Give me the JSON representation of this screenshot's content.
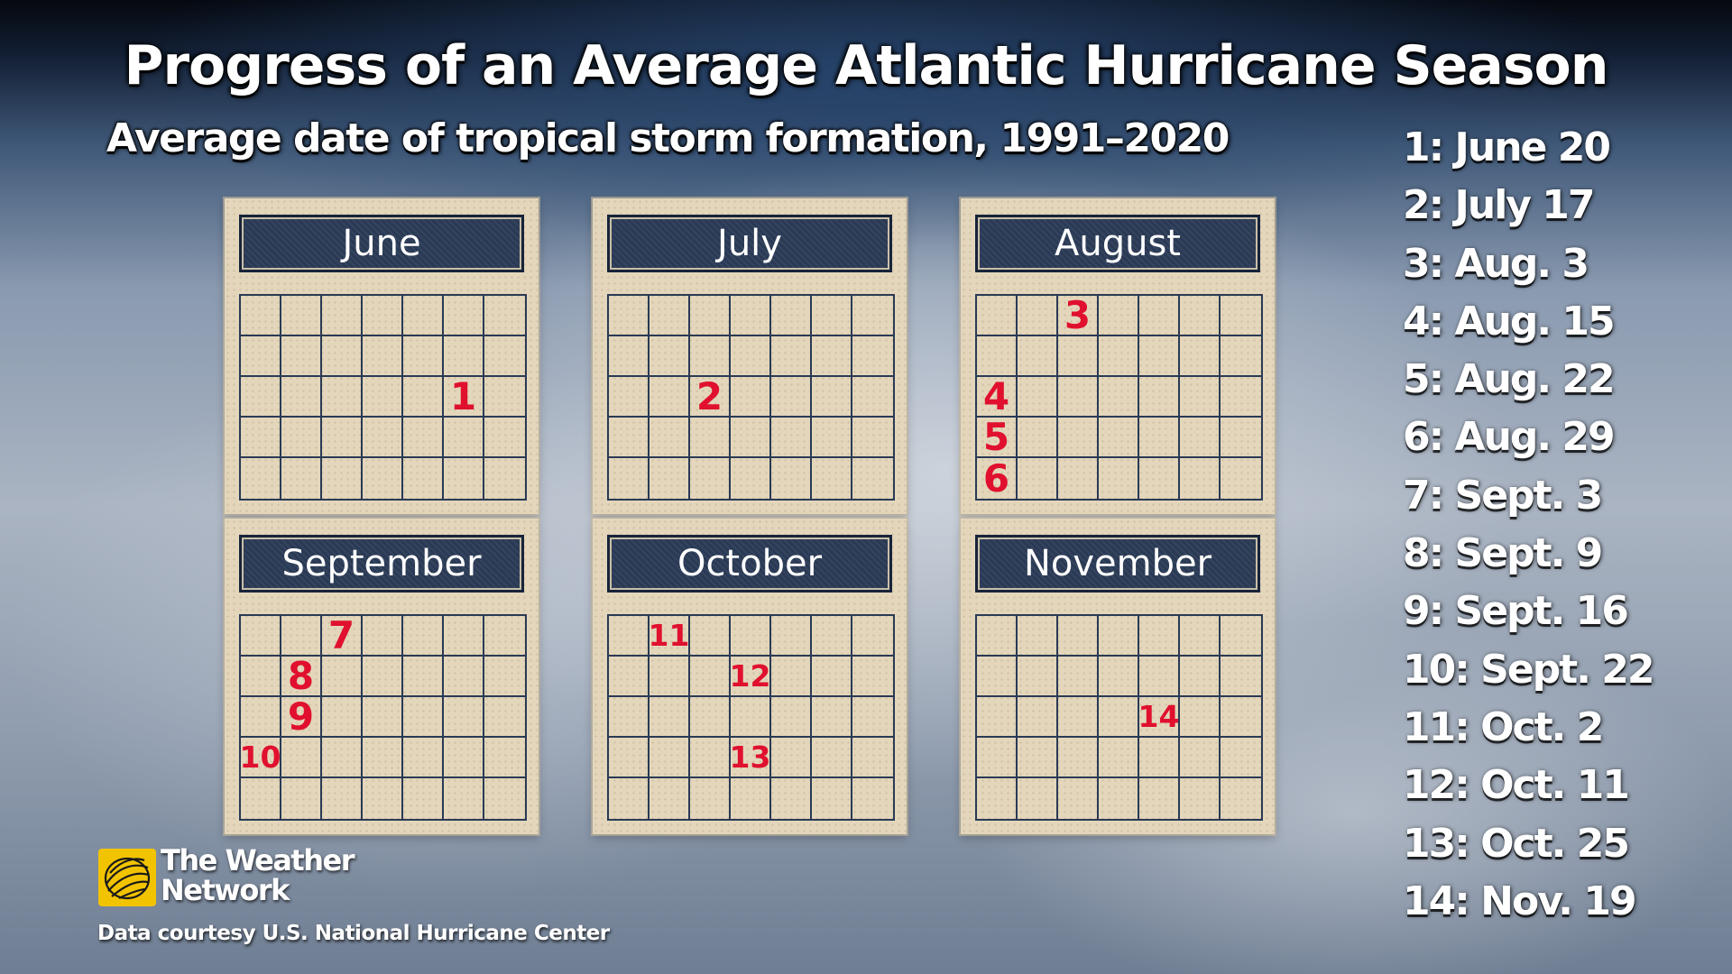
{
  "title": "Progress of an Average Atlantic Hurricane Season",
  "subtitle": "Average date of tropical storm formation, 1991–2020",
  "calendars": [
    {
      "month": "June",
      "marks": [
        {
          "row": 2,
          "col": 5,
          "label": "1"
        }
      ]
    },
    {
      "month": "July",
      "marks": [
        {
          "row": 2,
          "col": 2,
          "label": "2"
        }
      ]
    },
    {
      "month": "August",
      "marks": [
        {
          "row": 0,
          "col": 2,
          "label": "3"
        },
        {
          "row": 2,
          "col": 0,
          "label": "4"
        },
        {
          "row": 3,
          "col": 0,
          "label": "5"
        },
        {
          "row": 4,
          "col": 0,
          "label": "6"
        }
      ]
    },
    {
      "month": "September",
      "marks": [
        {
          "row": 0,
          "col": 2,
          "label": "7"
        },
        {
          "row": 1,
          "col": 1,
          "label": "8"
        },
        {
          "row": 2,
          "col": 1,
          "label": "9"
        },
        {
          "row": 3,
          "col": 0,
          "label": "10"
        }
      ]
    },
    {
      "month": "October",
      "marks": [
        {
          "row": 0,
          "col": 1,
          "label": "11"
        },
        {
          "row": 1,
          "col": 3,
          "label": "12"
        },
        {
          "row": 3,
          "col": 3,
          "label": "13"
        }
      ]
    },
    {
      "month": "November",
      "marks": [
        {
          "row": 2,
          "col": 4,
          "label": "14"
        }
      ]
    }
  ],
  "legend": [
    "1: June 20",
    "2: July 17",
    "3: Aug. 3",
    "4: Aug. 15",
    "5: Aug. 22",
    "6: Aug. 29",
    "7: Sept. 3",
    "8: Sept. 9",
    "9: Sept. 16",
    "10: Sept. 22",
    "11: Oct. 2",
    "12: Oct. 11",
    "13: Oct. 25",
    "14: Nov. 19"
  ],
  "brand": {
    "line1": "The Weather",
    "line2": "Network",
    "logo_icon": "weather-network-globe-icon",
    "logo_color": "#f2c300"
  },
  "credit": "Data courtesy U.S. National Hurricane Center",
  "colors": {
    "header": "#2a3a55",
    "paper": "#e3d6bb",
    "mark": "#e0102e"
  }
}
